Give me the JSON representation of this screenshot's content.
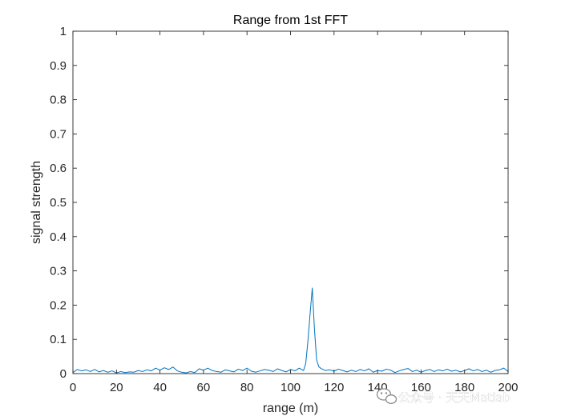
{
  "chart_data": {
    "type": "line",
    "title": "Range from 1st FFT",
    "xlabel": "range (m)",
    "ylabel": "signal strength",
    "xlim": [
      0,
      200
    ],
    "ylim": [
      0,
      1
    ],
    "xticks": [
      0,
      20,
      40,
      60,
      80,
      100,
      120,
      140,
      160,
      180,
      200
    ],
    "yticks": [
      0,
      0.1,
      0.2,
      0.3,
      0.4,
      0.5,
      0.6,
      0.7,
      0.8,
      0.9,
      1
    ],
    "ytick_labels": [
      "0",
      "0.1",
      "0.2",
      "0.3",
      "0.4",
      "0.5",
      "0.6",
      "0.7",
      "0.8",
      "0.9",
      "1"
    ],
    "grid": false,
    "box": true,
    "series": [
      {
        "color": "#0072bd",
        "x": [
          0,
          2,
          4,
          6,
          8,
          10,
          12,
          14,
          16,
          18,
          20,
          22,
          24,
          26,
          28,
          30,
          32,
          34,
          36,
          38,
          40,
          42,
          44,
          46,
          48,
          50,
          52,
          54,
          56,
          58,
          60,
          62,
          64,
          66,
          68,
          70,
          72,
          74,
          76,
          78,
          80,
          82,
          84,
          86,
          88,
          90,
          92,
          94,
          96,
          98,
          100,
          102,
          104,
          106,
          107,
          108,
          109,
          110,
          111,
          112,
          113,
          114,
          116,
          118,
          120,
          122,
          124,
          126,
          128,
          130,
          132,
          134,
          136,
          138,
          140,
          142,
          144,
          146,
          148,
          150,
          152,
          154,
          156,
          158,
          160,
          162,
          164,
          166,
          168,
          170,
          172,
          174,
          176,
          178,
          180,
          182,
          184,
          186,
          188,
          190,
          192,
          194,
          196,
          198,
          200
        ],
        "y": [
          0.003,
          0.012,
          0.008,
          0.011,
          0.006,
          0.012,
          0.005,
          0.009,
          0.004,
          0.008,
          0.002,
          0.006,
          0.003,
          0.005,
          0.004,
          0.009,
          0.006,
          0.011,
          0.008,
          0.016,
          0.01,
          0.017,
          0.012,
          0.019,
          0.008,
          0.004,
          0.002,
          0.006,
          0.003,
          0.014,
          0.01,
          0.016,
          0.009,
          0.006,
          0.004,
          0.011,
          0.008,
          0.005,
          0.013,
          0.009,
          0.016,
          0.007,
          0.004,
          0.008,
          0.012,
          0.01,
          0.006,
          0.014,
          0.009,
          0.005,
          0.012,
          0.008,
          0.016,
          0.009,
          0.03,
          0.095,
          0.175,
          0.25,
          0.13,
          0.04,
          0.02,
          0.015,
          0.009,
          0.011,
          0.007,
          0.013,
          0.009,
          0.005,
          0.01,
          0.006,
          0.012,
          0.008,
          0.014,
          0.004,
          0.009,
          0.007,
          0.013,
          0.01,
          0.003,
          0.008,
          0.012,
          0.015,
          0.006,
          0.01,
          0.004,
          0.009,
          0.012,
          0.006,
          0.011,
          0.008,
          0.013,
          0.007,
          0.01,
          0.005,
          0.009,
          0.014,
          0.008,
          0.012,
          0.006,
          0.01,
          0.004,
          0.009,
          0.011,
          0.016,
          0.006
        ]
      }
    ]
  },
  "watermark": {
    "text": "公众号 · 天天Matlab"
  }
}
